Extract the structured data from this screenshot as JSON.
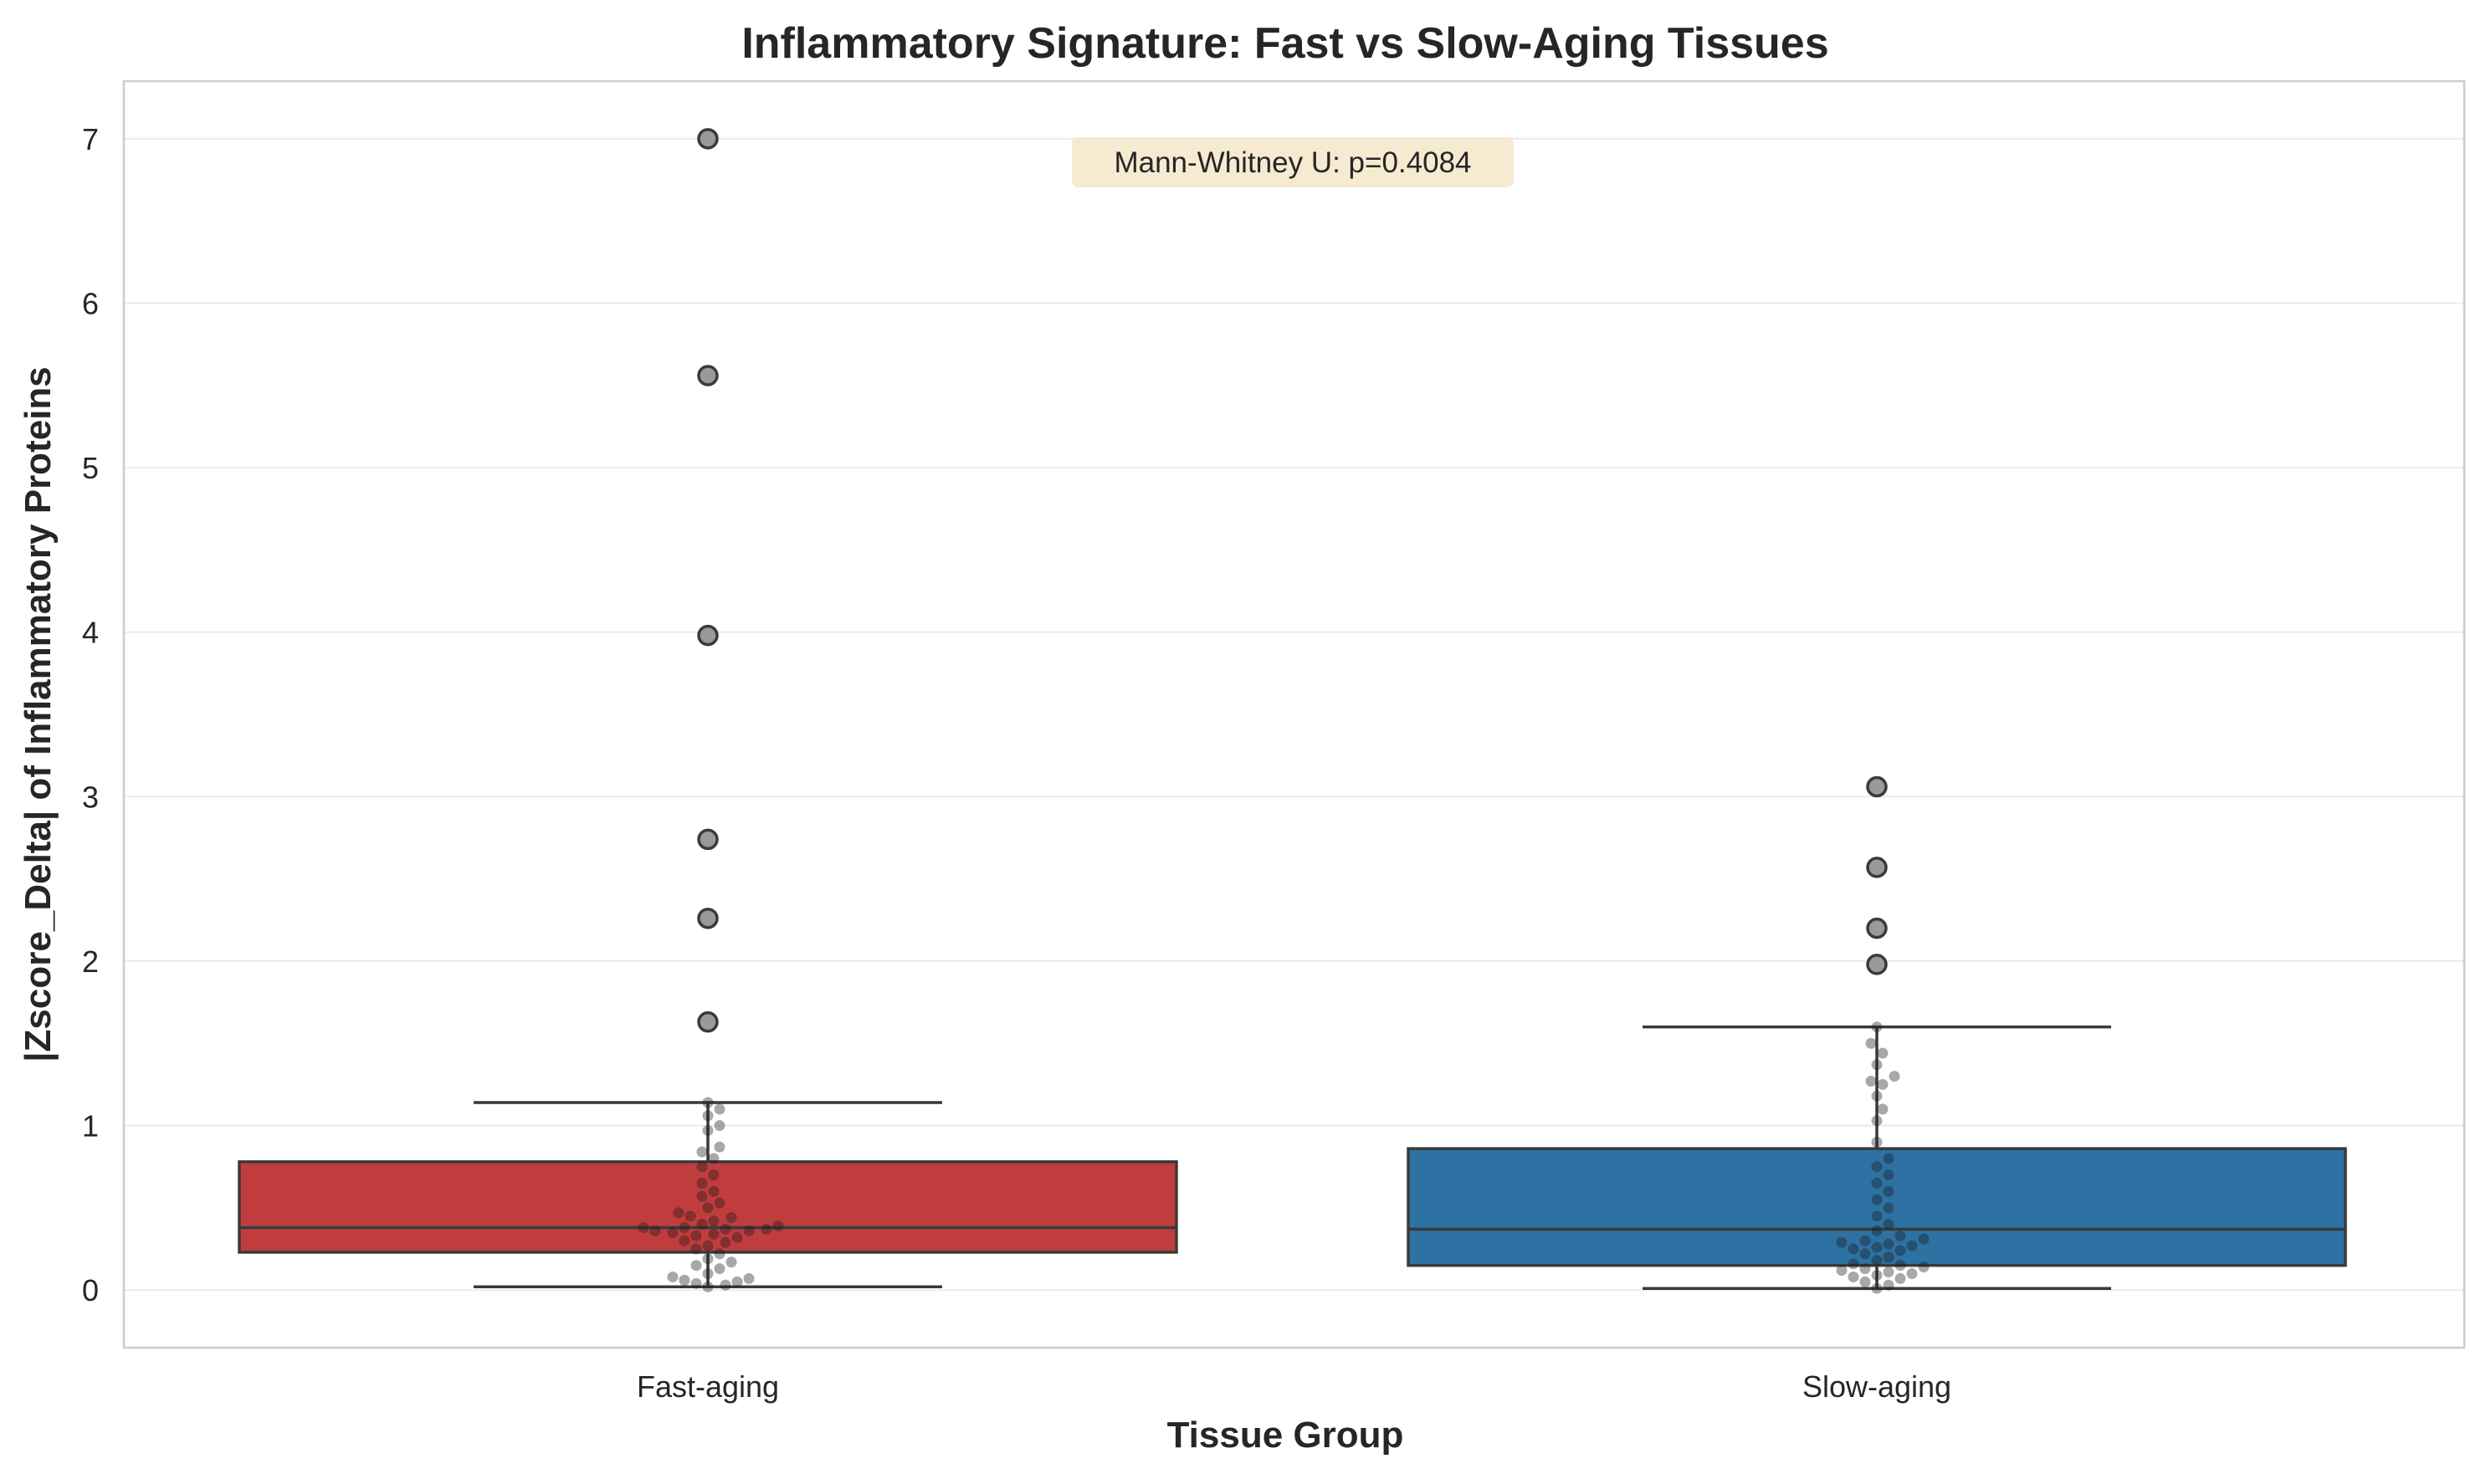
{
  "chart_data": {
    "type": "box",
    "title": "Inflammatory Signature: Fast vs Slow-Aging Tissues",
    "xlabel": "Tissue Group",
    "ylabel": "|Zscore_Delta| of Inflammatory Proteins",
    "ylim": [
      -0.35,
      7.35
    ],
    "yticks": [
      0,
      1,
      2,
      3,
      4,
      5,
      6,
      7
    ],
    "grid": "horizontal",
    "annotation": "Mann-Whitney U: p=0.4084",
    "categories": [
      "Fast-aging",
      "Slow-aging"
    ],
    "groups": [
      {
        "name": "Fast-aging",
        "color": "#c03d3e",
        "q1": 0.23,
        "median": 0.38,
        "q3": 0.78,
        "whisker_low": 0.02,
        "whisker_high": 1.14,
        "outliers": [
          1.63,
          2.26,
          2.74,
          3.98,
          5.56,
          7.0
        ],
        "points": [
          0.02,
          0.03,
          0.04,
          0.05,
          0.06,
          0.07,
          0.08,
          0.1,
          0.13,
          0.15,
          0.17,
          0.19,
          0.22,
          0.25,
          0.27,
          0.29,
          0.3,
          0.32,
          0.33,
          0.34,
          0.35,
          0.36,
          0.36,
          0.37,
          0.37,
          0.38,
          0.38,
          0.39,
          0.4,
          0.42,
          0.44,
          0.45,
          0.47,
          0.5,
          0.53,
          0.57,
          0.6,
          0.65,
          0.7,
          0.75,
          0.8,
          0.84,
          0.87,
          0.97,
          1.0,
          1.06,
          1.1,
          1.14
        ]
      },
      {
        "name": "Slow-aging",
        "color": "#2e72a3",
        "q1": 0.15,
        "median": 0.37,
        "q3": 0.86,
        "whisker_low": 0.01,
        "whisker_high": 1.6,
        "outliers": [
          1.98,
          2.2,
          2.57,
          3.06
        ],
        "points": [
          0.01,
          0.03,
          0.05,
          0.07,
          0.08,
          0.09,
          0.1,
          0.11,
          0.12,
          0.13,
          0.14,
          0.15,
          0.16,
          0.18,
          0.2,
          0.22,
          0.24,
          0.25,
          0.26,
          0.27,
          0.28,
          0.29,
          0.3,
          0.31,
          0.33,
          0.36,
          0.4,
          0.45,
          0.5,
          0.55,
          0.6,
          0.65,
          0.7,
          0.75,
          0.8,
          0.9,
          1.03,
          1.1,
          1.18,
          1.25,
          1.27,
          1.3,
          1.37,
          1.44,
          1.5,
          1.6
        ]
      }
    ]
  }
}
